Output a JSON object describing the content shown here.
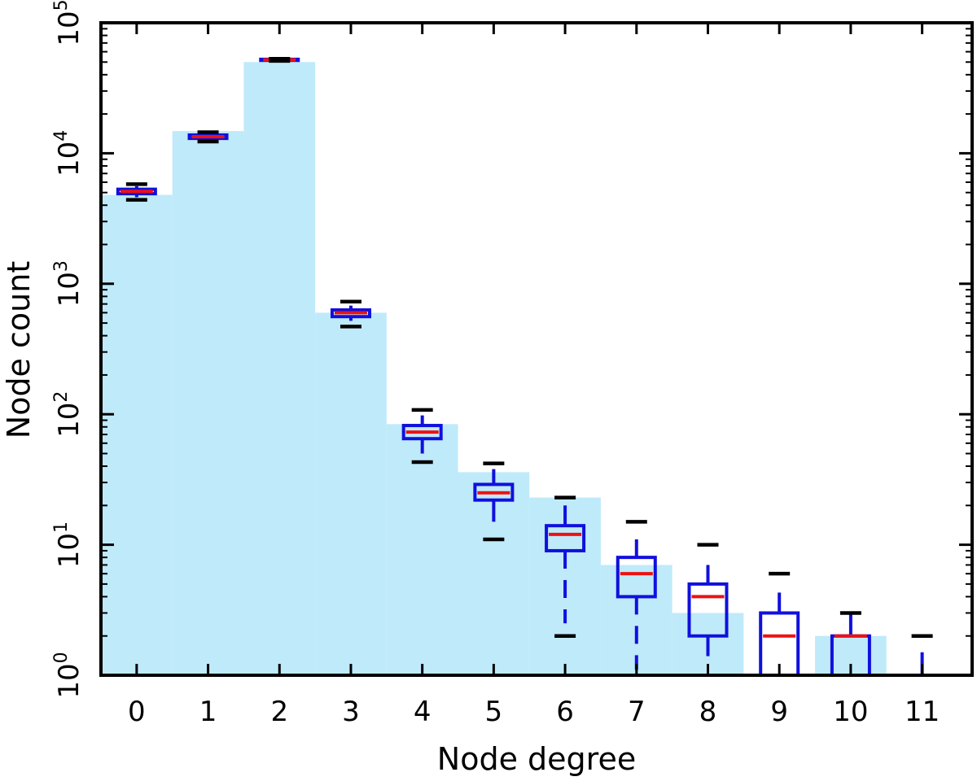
{
  "chart_data": {
    "type": "bar",
    "title": "",
    "xlabel": "Node degree",
    "ylabel": "Node count",
    "yscale": "log",
    "ylim": [
      1,
      100000
    ],
    "y_ticks": [
      {
        "value": 1,
        "base": "10",
        "exp": "0"
      },
      {
        "value": 10,
        "base": "10",
        "exp": "1"
      },
      {
        "value": 100,
        "base": "10",
        "exp": "2"
      },
      {
        "value": 1000,
        "base": "10",
        "exp": "3"
      },
      {
        "value": 10000,
        "base": "10",
        "exp": "4"
      },
      {
        "value": 100000,
        "base": "10",
        "exp": "5"
      }
    ],
    "categories": [
      "0",
      "1",
      "2",
      "3",
      "4",
      "5",
      "6",
      "7",
      "8",
      "9",
      "10",
      "11"
    ],
    "histogram_values": [
      4800,
      14800,
      50000,
      600,
      84,
      36,
      23,
      7,
      3,
      1,
      2,
      1
    ],
    "boxplots": [
      {
        "degree": "0",
        "whisker_low": 4600,
        "q1": 4900,
        "median": 5100,
        "q3": 5300,
        "whisker_high": 5600,
        "cap_low": 4400,
        "cap_high": 5800
      },
      {
        "degree": "1",
        "whisker_low": 12800,
        "q1": 13000,
        "median": 13400,
        "q3": 13800,
        "whisker_high": 14000,
        "cap_low": 12300,
        "cap_high": 14500
      },
      {
        "degree": "2",
        "whisker_low": 51000,
        "q1": 51500,
        "median": 52000,
        "q3": 52500,
        "whisker_high": 53000,
        "cap_low": 51000,
        "cap_high": 53000
      },
      {
        "degree": "3",
        "whisker_low": 520,
        "q1": 560,
        "median": 600,
        "q3": 630,
        "whisker_high": 680,
        "cap_low": 470,
        "cap_high": 730
      },
      {
        "degree": "4",
        "whisker_low": 50,
        "q1": 65,
        "median": 73,
        "q3": 82,
        "whisker_high": 98,
        "cap_low": 43,
        "cap_high": 108
      },
      {
        "degree": "5",
        "whisker_low": 15,
        "q1": 22,
        "median": 25,
        "q3": 29,
        "whisker_high": 38,
        "cap_low": 11,
        "cap_high": 42
      },
      {
        "degree": "6",
        "whisker_low": 2.5,
        "q1": 9,
        "median": 12,
        "q3": 14,
        "whisker_high": 20,
        "cap_low": 2,
        "cap_high": 23
      },
      {
        "degree": "7",
        "whisker_low": 1.1,
        "q1": 4,
        "median": 6,
        "q3": 8,
        "whisker_high": 11,
        "cap_low": null,
        "cap_high": 15
      },
      {
        "degree": "8",
        "whisker_low": 1.4,
        "q1": 2,
        "median": 4,
        "q3": 5,
        "whisker_high": 7,
        "cap_low": null,
        "cap_high": 10
      },
      {
        "degree": "9",
        "whisker_low": 1,
        "q1": 1,
        "median": 2,
        "q3": 3,
        "whisker_high": 4.3,
        "cap_low": null,
        "cap_high": 6
      },
      {
        "degree": "10",
        "whisker_low": 1,
        "q1": 1,
        "median": 2,
        "q3": 2,
        "whisker_high": 3,
        "cap_low": null,
        "cap_high": 3
      },
      {
        "degree": "11",
        "whisker_low": 1,
        "q1": 1,
        "median": 1,
        "q3": 1,
        "whisker_high": 1.5,
        "cap_low": null,
        "cap_high": 2
      }
    ],
    "colors": {
      "histogram": "#bfeafa",
      "box": "#1010dd",
      "median": "#ee1111",
      "cap": "#000000",
      "axis": "#000000"
    },
    "grid": false,
    "legend": "none"
  }
}
